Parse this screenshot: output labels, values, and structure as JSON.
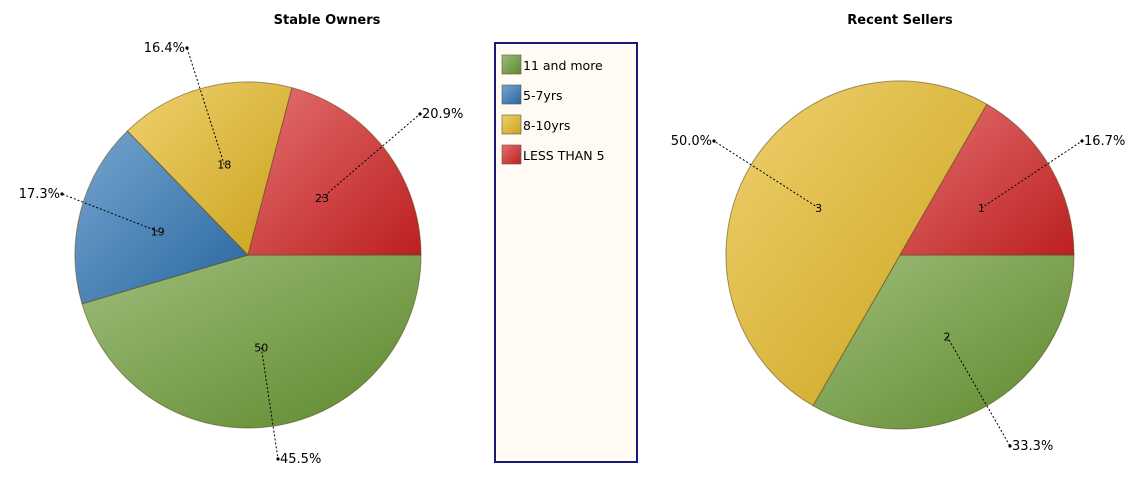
{
  "chart_data": [
    {
      "type": "pie",
      "title": "Stable Owners",
      "slices": [
        {
          "name": "11 and more",
          "value": 50,
          "percent": "45.5%"
        },
        {
          "name": "5-7yrs",
          "value": 19,
          "percent": "17.3%"
        },
        {
          "name": "8-10yrs",
          "value": 18,
          "percent": "16.4%"
        },
        {
          "name": "LESS THAN 5",
          "value": 23,
          "percent": "20.9%"
        }
      ]
    },
    {
      "type": "pie",
      "title": "Recent Sellers",
      "slices": [
        {
          "name": "11 and more",
          "value": 2,
          "percent": "33.3%"
        },
        {
          "name": "5-7yrs",
          "value": 0,
          "percent": ""
        },
        {
          "name": "8-10yrs",
          "value": 3,
          "percent": "50.0%"
        },
        {
          "name": "LESS THAN 5",
          "value": 1,
          "percent": "16.7%"
        }
      ]
    }
  ],
  "legend": {
    "placement": "center",
    "items": [
      {
        "label": "11 and more",
        "color": "#6a9a32"
      },
      {
        "label": "5-7yrs",
        "color": "#2c74b5"
      },
      {
        "label": "8-10yrs",
        "color": "#e6b820"
      },
      {
        "label": "LESS THAN 5",
        "color": "#d62323"
      }
    ]
  }
}
